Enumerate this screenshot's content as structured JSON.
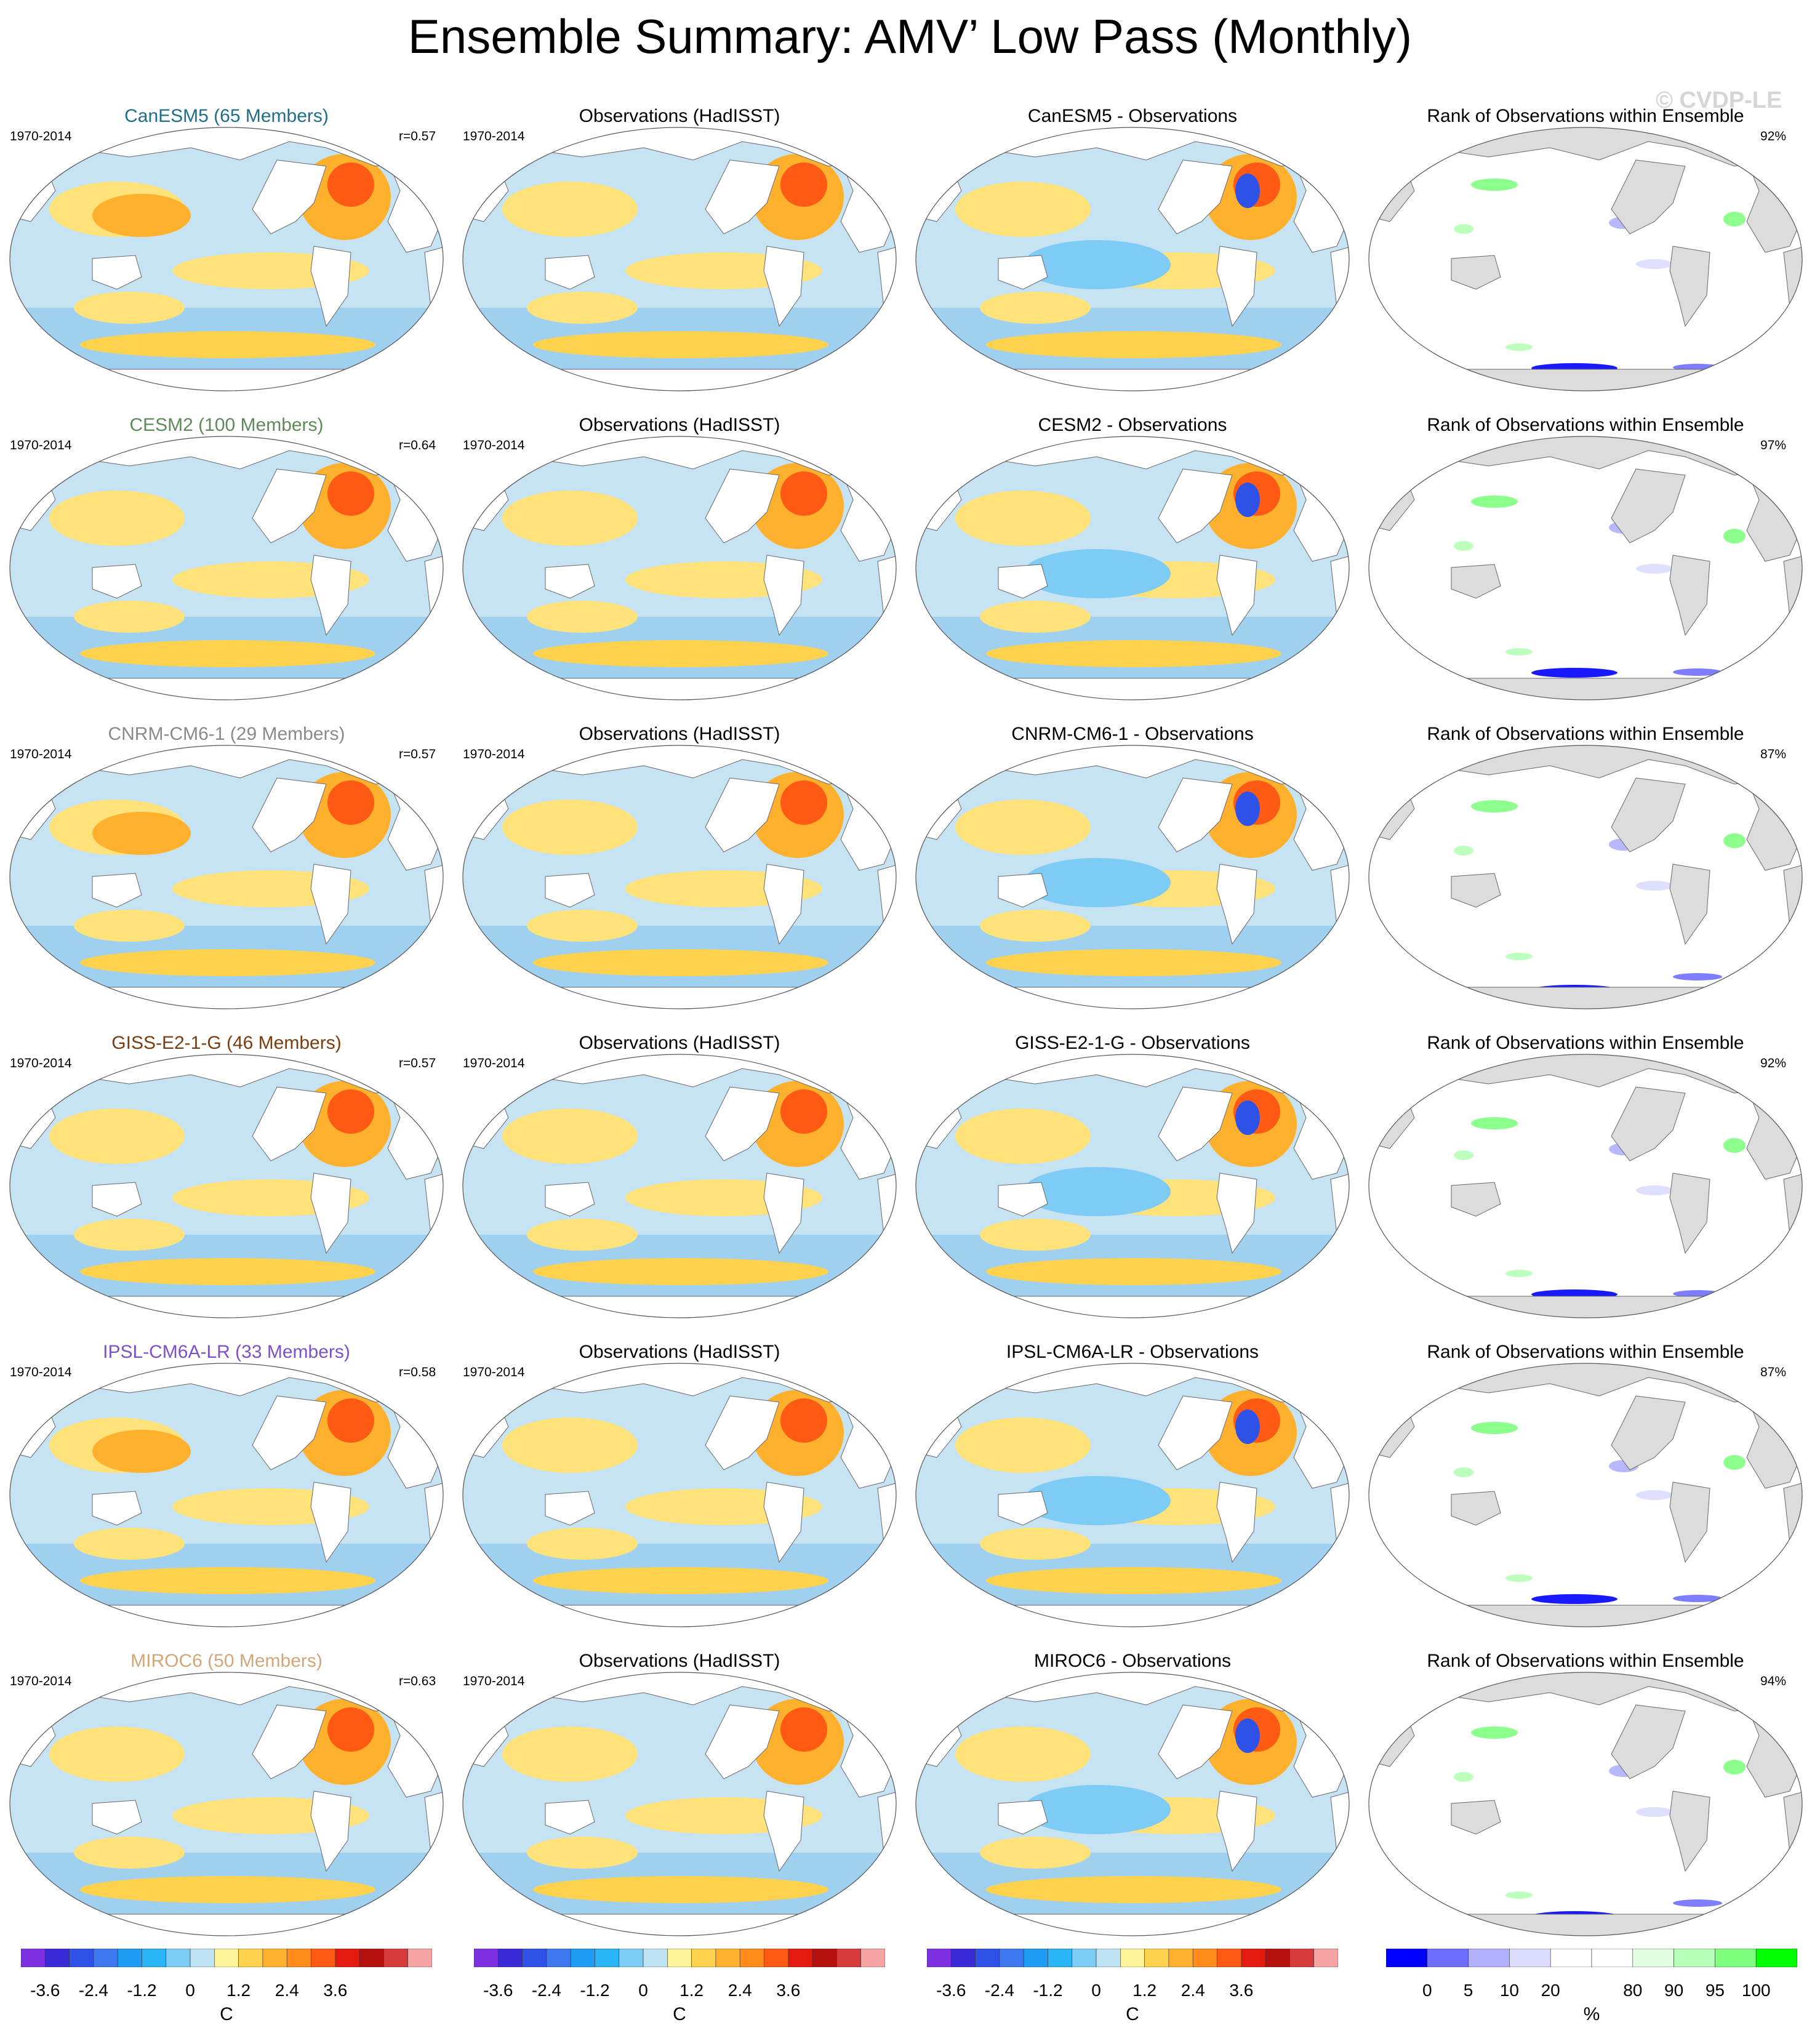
{
  "title": "Ensemble Summary: AMV’ Low Pass (Monthly)",
  "watermark": "© CVDP-LE",
  "chart_data": {
    "type": "map-panel-grid",
    "rows": [
      {
        "model": "CanESM5 (65 Members)",
        "model_color": "#1f6f8a",
        "period": "1970-2014",
        "r": "r=0.57",
        "obs_title": "Observations (HadISST)",
        "obs_period": "1970-2014",
        "diff_title": "CanESM5 - Observations",
        "rank_title": "Rank of Observations within Ensemble",
        "rank_pct": "92%"
      },
      {
        "model": "CESM2 (100 Members)",
        "model_color": "#5f8a5a",
        "period": "1970-2014",
        "r": "r=0.64",
        "obs_title": "Observations (HadISST)",
        "obs_period": "1970-2014",
        "diff_title": "CESM2 - Observations",
        "rank_title": "Rank of Observations within Ensemble",
        "rank_pct": "97%"
      },
      {
        "model": "CNRM-CM6-1 (29 Members)",
        "model_color": "#8a8a8a",
        "period": "1970-2014",
        "r": "r=0.57",
        "obs_title": "Observations (HadISST)",
        "obs_period": "1970-2014",
        "diff_title": "CNRM-CM6-1 - Observations",
        "rank_title": "Rank of Observations within Ensemble",
        "rank_pct": "87%"
      },
      {
        "model": "GISS-E2-1-G (46 Members)",
        "model_color": "#7a3d10",
        "period": "1970-2014",
        "r": "r=0.57",
        "obs_title": "Observations (HadISST)",
        "obs_period": "1970-2014",
        "diff_title": "GISS-E2-1-G - Observations",
        "rank_title": "Rank of Observations within Ensemble",
        "rank_pct": "92%"
      },
      {
        "model": "IPSL-CM6A-LR (33 Members)",
        "model_color": "#7b52c8",
        "period": "1970-2014",
        "r": "r=0.58",
        "obs_title": "Observations (HadISST)",
        "obs_period": "1970-2014",
        "diff_title": "IPSL-CM6A-LR - Observations",
        "rank_title": "Rank of Observations within Ensemble",
        "rank_pct": "87%"
      },
      {
        "model": "MIROC6 (50 Members)",
        "model_color": "#d2a67a",
        "period": "1970-2014",
        "r": "r=0.63",
        "obs_title": "Observations (HadISST)",
        "obs_period": "1970-2014",
        "diff_title": "MIROC6 - Observations",
        "rank_title": "Rank of Observations within Ensemble",
        "rank_pct": "94%"
      }
    ],
    "temp_colorbar": {
      "colors": [
        "#7e2fe0",
        "#3a2bd8",
        "#2e52e8",
        "#3d78ee",
        "#1e9bf2",
        "#28b4f5",
        "#7ecbf5",
        "#bfe2f5",
        "#fff39a",
        "#ffd24d",
        "#ffb12e",
        "#ff8c1a",
        "#ff5a14",
        "#e41a0e",
        "#b5100e",
        "#d63a3a",
        "#f5a3a3"
      ],
      "labels": [
        "-3.6",
        "-2.4",
        "-1.2",
        "0",
        "1.2",
        "2.4",
        "3.6"
      ],
      "label_positions": [
        1,
        3,
        5,
        7,
        9,
        11,
        13
      ],
      "unit": "C"
    },
    "rank_colorbar": {
      "colors": [
        "#0000ff",
        "#6f6fff",
        "#b0b0ff",
        "#dcdcff",
        "#ffffff",
        "#ffffff",
        "#e2ffe2",
        "#b6ffb6",
        "#7fff7f",
        "#00ff00"
      ],
      "labels": [
        "0",
        "5",
        "10",
        "20",
        "80",
        "90",
        "95",
        "100"
      ],
      "label_positions": [
        1,
        2,
        3,
        4,
        6,
        7,
        8,
        9
      ],
      "unit": "%"
    }
  }
}
